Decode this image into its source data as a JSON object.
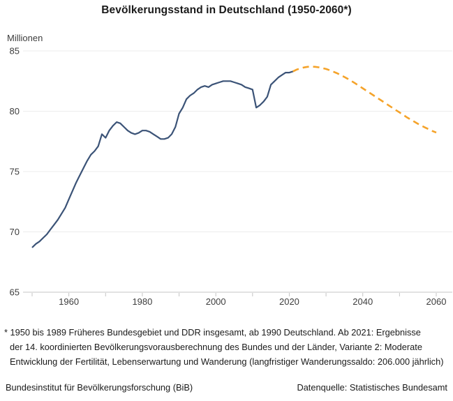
{
  "title": "Bevölkerungsstand in Deutschland (1950-2060*)",
  "unit_label": "Millionen",
  "footnote": {
    "lines": [
      "* 1950 bis 1989 Früheres Bundesgebiet und DDR insgesamt, ab 1990 Deutschland. Ab 2021: Ergebnisse",
      "der 14. koordinierten Bevölkerungsvorausberechnung des Bundes und der Länder, Variante 2: Moderate",
      "Entwicklung der Fertilität, Lebenserwartung und Wanderung (langfristiger Wanderungssaldo: 206.000 jährlich)"
    ]
  },
  "footer": {
    "left": "Bundesinstitut für Bevölkerungsforschung (BiB)",
    "right": "Datenquelle: Statistisches Bundesamt"
  },
  "chart_data": {
    "type": "line",
    "title": "Bevölkerungsstand in Deutschland (1950-2060*)",
    "ylabel": "Millionen",
    "xlim": [
      1950,
      2060
    ],
    "ylim": [
      65,
      85
    ],
    "y_ticks": [
      65,
      70,
      75,
      80,
      85
    ],
    "x_ticks_labeled": [
      1960,
      1980,
      2000,
      2020,
      2040,
      2060
    ],
    "x_ticks_minor": [
      1950,
      1960,
      1970,
      1980,
      1990,
      2000,
      2010,
      2020,
      2030,
      2040,
      2050,
      2060
    ],
    "grid": "horizontal",
    "legend": "none",
    "colors": {
      "historical_line": "#3b5377",
      "projection_line": "#f5a32a",
      "gridline": "#ececec",
      "axis": "#c4c4c4",
      "tick_label": "#3d3d3d"
    },
    "series": [
      {
        "id": "historical",
        "style": "solid",
        "color": "#3b5377",
        "points": [
          [
            1950,
            68.7
          ],
          [
            1951,
            69.0
          ],
          [
            1952,
            69.2
          ],
          [
            1953,
            69.5
          ],
          [
            1954,
            69.8
          ],
          [
            1955,
            70.2
          ],
          [
            1956,
            70.6
          ],
          [
            1957,
            71.0
          ],
          [
            1958,
            71.5
          ],
          [
            1959,
            72.0
          ],
          [
            1960,
            72.7
          ],
          [
            1961,
            73.4
          ],
          [
            1962,
            74.1
          ],
          [
            1963,
            74.7
          ],
          [
            1964,
            75.3
          ],
          [
            1965,
            75.9
          ],
          [
            1966,
            76.4
          ],
          [
            1967,
            76.7
          ],
          [
            1968,
            77.1
          ],
          [
            1969,
            78.1
          ],
          [
            1970,
            77.8
          ],
          [
            1971,
            78.4
          ],
          [
            1972,
            78.8
          ],
          [
            1973,
            79.1
          ],
          [
            1974,
            79.0
          ],
          [
            1975,
            78.7
          ],
          [
            1976,
            78.4
          ],
          [
            1977,
            78.2
          ],
          [
            1978,
            78.1
          ],
          [
            1979,
            78.2
          ],
          [
            1980,
            78.4
          ],
          [
            1981,
            78.4
          ],
          [
            1982,
            78.3
          ],
          [
            1983,
            78.1
          ],
          [
            1984,
            77.9
          ],
          [
            1985,
            77.7
          ],
          [
            1986,
            77.7
          ],
          [
            1987,
            77.8
          ],
          [
            1988,
            78.1
          ],
          [
            1989,
            78.7
          ],
          [
            1990,
            79.8
          ],
          [
            1991,
            80.3
          ],
          [
            1992,
            81.0
          ],
          [
            1993,
            81.3
          ],
          [
            1994,
            81.5
          ],
          [
            1995,
            81.8
          ],
          [
            1996,
            82.0
          ],
          [
            1997,
            82.1
          ],
          [
            1998,
            82.0
          ],
          [
            1999,
            82.2
          ],
          [
            2000,
            82.3
          ],
          [
            2001,
            82.4
          ],
          [
            2002,
            82.5
          ],
          [
            2003,
            82.5
          ],
          [
            2004,
            82.5
          ],
          [
            2005,
            82.4
          ],
          [
            2006,
            82.3
          ],
          [
            2007,
            82.2
          ],
          [
            2008,
            82.0
          ],
          [
            2009,
            81.9
          ],
          [
            2010,
            81.8
          ],
          [
            2011,
            80.3
          ],
          [
            2012,
            80.5
          ],
          [
            2013,
            80.8
          ],
          [
            2014,
            81.2
          ],
          [
            2015,
            82.2
          ],
          [
            2016,
            82.5
          ],
          [
            2017,
            82.8
          ],
          [
            2018,
            83.0
          ],
          [
            2019,
            83.2
          ],
          [
            2020,
            83.2
          ],
          [
            2021,
            83.3
          ]
        ]
      },
      {
        "id": "projection",
        "style": "dashed",
        "color": "#f5a32a",
        "points": [
          [
            2021,
            83.3
          ],
          [
            2022,
            83.45
          ],
          [
            2023,
            83.55
          ],
          [
            2024,
            83.63
          ],
          [
            2025,
            83.68
          ],
          [
            2026,
            83.7
          ],
          [
            2027,
            83.68
          ],
          [
            2028,
            83.64
          ],
          [
            2029,
            83.58
          ],
          [
            2030,
            83.5
          ],
          [
            2031,
            83.4
          ],
          [
            2032,
            83.28
          ],
          [
            2033,
            83.15
          ],
          [
            2034,
            83.0
          ],
          [
            2035,
            82.84
          ],
          [
            2036,
            82.67
          ],
          [
            2037,
            82.49
          ],
          [
            2038,
            82.3
          ],
          [
            2039,
            82.1
          ],
          [
            2040,
            81.9
          ],
          [
            2041,
            81.7
          ],
          [
            2042,
            81.5
          ],
          [
            2043,
            81.3
          ],
          [
            2044,
            81.1
          ],
          [
            2045,
            80.9
          ],
          [
            2046,
            80.7
          ],
          [
            2047,
            80.5
          ],
          [
            2048,
            80.3
          ],
          [
            2049,
            80.1
          ],
          [
            2050,
            79.9
          ],
          [
            2051,
            79.7
          ],
          [
            2052,
            79.5
          ],
          [
            2053,
            79.32
          ],
          [
            2054,
            79.14
          ],
          [
            2055,
            78.96
          ],
          [
            2056,
            78.8
          ],
          [
            2057,
            78.65
          ],
          [
            2058,
            78.5
          ],
          [
            2059,
            78.36
          ],
          [
            2060,
            78.23
          ]
        ]
      }
    ]
  }
}
